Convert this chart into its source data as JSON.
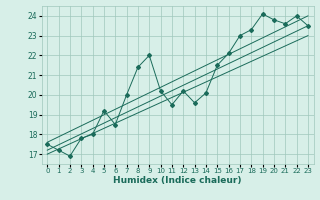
{
  "title": "",
  "xlabel": "Humidex (Indice chaleur)",
  "ylabel": "",
  "bg_color": "#d7efe8",
  "grid_color": "#a0c8bc",
  "line_color": "#1a6b5a",
  "xlim": [
    -0.5,
    23.5
  ],
  "ylim": [
    16.5,
    24.5
  ],
  "xticks": [
    0,
    1,
    2,
    3,
    4,
    5,
    6,
    7,
    8,
    9,
    10,
    11,
    12,
    13,
    14,
    15,
    16,
    17,
    18,
    19,
    20,
    21,
    22,
    23
  ],
  "yticks": [
    17,
    18,
    19,
    20,
    21,
    22,
    23,
    24
  ],
  "main_line": {
    "x": [
      0,
      1,
      2,
      3,
      4,
      5,
      6,
      7,
      8,
      9,
      10,
      11,
      12,
      13,
      14,
      15,
      16,
      17,
      18,
      19,
      20,
      21,
      22,
      23
    ],
    "y": [
      17.5,
      17.2,
      16.9,
      17.8,
      18.0,
      19.2,
      18.5,
      20.0,
      21.4,
      22.0,
      20.2,
      19.5,
      20.2,
      19.6,
      20.1,
      21.5,
      22.1,
      23.0,
      23.3,
      24.1,
      23.8,
      23.6,
      24.0,
      23.5
    ]
  },
  "reg_line1": {
    "x": [
      0,
      23
    ],
    "y": [
      17.2,
      23.5
    ]
  },
  "reg_line2": {
    "x": [
      0,
      23
    ],
    "y": [
      17.6,
      24.0
    ]
  },
  "reg_line3": {
    "x": [
      0,
      23
    ],
    "y": [
      17.0,
      23.0
    ]
  }
}
